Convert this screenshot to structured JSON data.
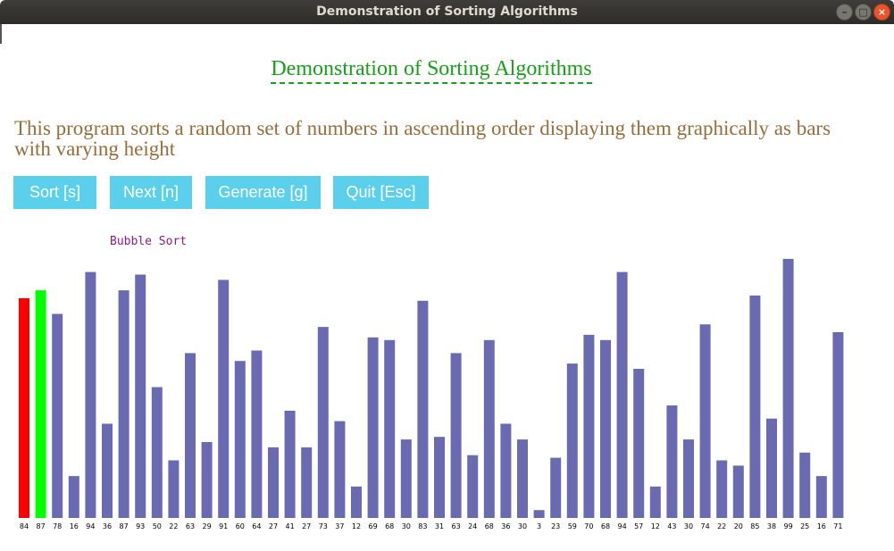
{
  "window": {
    "title": "Demonstration of Sorting Algorithms",
    "minimize_glyph": "–",
    "maximize_glyph": "□",
    "close_glyph": "×"
  },
  "page": {
    "heading": "Demonstration of Sorting Algorithms",
    "description": "This program sorts a random set of numbers in ascending order displaying them graphically as bars with varying height"
  },
  "buttons": {
    "sort": "Sort [s]",
    "next": "Next [n]",
    "generate": "Generate [g]",
    "quit": "Quit [Esc]"
  },
  "algorithm_label": "Bubble Sort",
  "colors": {
    "bar_default": "#6a6ab3",
    "bar_compare_a": "#ff0000",
    "bar_compare_b": "#00ff00",
    "heading": "#16a116",
    "description": "#9a6c39",
    "button_bg": "#5bd0ec",
    "algorithm_label": "#8a1a8a"
  },
  "chart_data": {
    "type": "bar",
    "values": [
      84,
      87,
      78,
      16,
      94,
      36,
      87,
      93,
      50,
      22,
      63,
      29,
      91,
      60,
      64,
      27,
      41,
      27,
      73,
      37,
      12,
      69,
      68,
      30,
      83,
      31,
      63,
      24,
      68,
      36,
      30,
      3,
      23,
      59,
      70,
      68,
      94,
      57,
      12,
      43,
      30,
      74,
      22,
      20,
      85,
      38,
      99,
      25,
      16,
      71
    ],
    "highlight": [
      {
        "index": 0,
        "role": "compare-a",
        "color": "#ff0000"
      },
      {
        "index": 1,
        "role": "compare-b",
        "color": "#00ff00"
      }
    ],
    "ylim": [
      0,
      100
    ]
  }
}
